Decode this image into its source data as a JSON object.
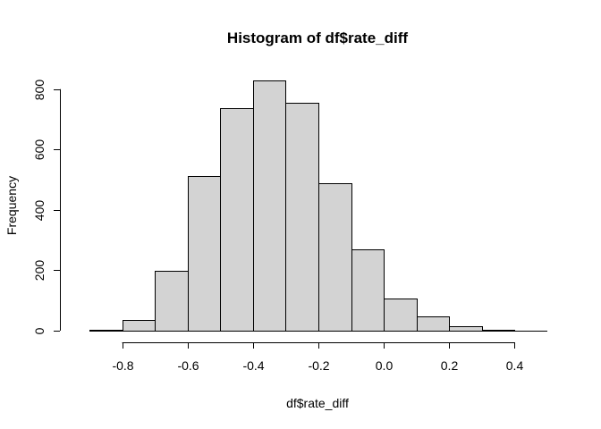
{
  "chart_data": {
    "type": "bar",
    "title": "Histogram of df$rate_diff",
    "xlabel": "df$rate_diff",
    "ylabel": "Frequency",
    "bin_edges": [
      -0.9,
      -0.8,
      -0.7,
      -0.6,
      -0.5,
      -0.4,
      -0.3,
      -0.2,
      -0.1,
      0.0,
      0.1,
      0.2,
      0.3,
      0.4
    ],
    "values": [
      3,
      35,
      197,
      513,
      737,
      829,
      756,
      489,
      268,
      108,
      47,
      14,
      3
    ],
    "xlim": [
      -0.9,
      0.5
    ],
    "ylim": [
      0,
      829
    ],
    "x_ticks": [
      -0.8,
      -0.6,
      -0.4,
      -0.2,
      0.0,
      0.2,
      0.4
    ],
    "x_tick_labels": [
      "-0.8",
      "-0.6",
      "-0.4",
      "-0.2",
      "0.0",
      "0.2",
      "0.4"
    ],
    "y_ticks": [
      0,
      200,
      400,
      600,
      800
    ],
    "y_tick_labels": [
      "0",
      "200",
      "400",
      "600",
      "800"
    ],
    "colors": {
      "bar_fill": "#d3d3d3",
      "bar_stroke": "#000000"
    },
    "grid": false,
    "legend": "none"
  }
}
